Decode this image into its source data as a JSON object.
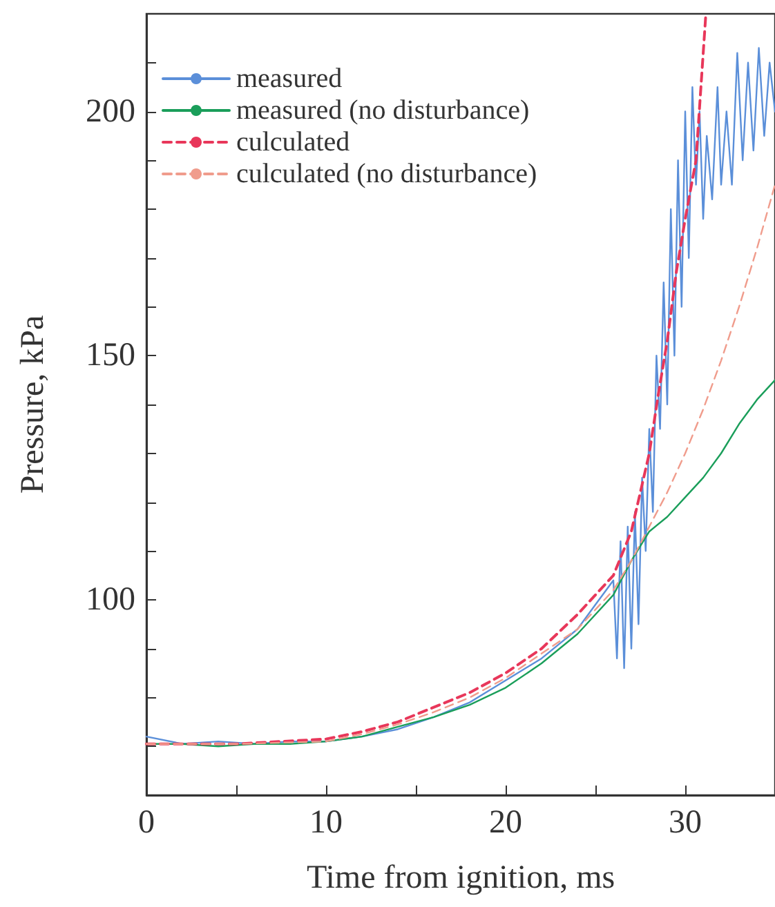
{
  "chart_data": {
    "type": "line",
    "xlabel": "Time from ignition, ms",
    "ylabel": "Pressure, kPa",
    "xlim": [
      0,
      35
    ],
    "ylim": [
      60,
      220
    ],
    "xticks": [
      0,
      {
        "value": 5,
        "label": null
      },
      10,
      {
        "value": 15,
        "label": null
      },
      20,
      {
        "value": 25,
        "label": null
      },
      30
    ],
    "yticks": [
      {
        "value": 70,
        "label": null
      },
      {
        "value": 80,
        "label": null
      },
      {
        "value": 90,
        "label": null
      },
      100,
      {
        "value": 110,
        "label": null
      },
      {
        "value": 120,
        "label": null
      },
      {
        "value": 130,
        "label": null
      },
      {
        "value": 140,
        "label": null
      },
      150,
      {
        "value": 160,
        "label": null
      },
      {
        "value": 170,
        "label": null
      },
      {
        "value": 180,
        "label": null
      },
      {
        "value": 190,
        "label": null
      },
      200,
      {
        "value": 210,
        "label": null
      }
    ],
    "grid": false,
    "legend": "top left",
    "marker": "none",
    "series": [
      {
        "name": "measured",
        "color": "#5b8fd9",
        "line_style": "solid",
        "x": [
          0,
          2,
          4,
          6,
          8,
          10,
          12,
          14,
          16,
          18,
          20,
          22,
          23,
          24,
          25,
          26,
          26.2,
          26.4,
          26.6,
          26.8,
          27,
          27.2,
          27.4,
          27.6,
          27.8,
          28,
          28.2,
          28.4,
          28.6,
          28.8,
          29,
          29.2,
          29.4,
          29.6,
          29.8,
          30,
          30.2,
          30.4,
          30.6,
          30.8,
          31,
          31.2,
          31.5,
          31.8,
          32,
          32.3,
          32.6,
          32.9,
          33.2,
          33.5,
          33.8,
          34.1,
          34.4,
          34.7,
          35
        ],
        "values": [
          72,
          70.5,
          71,
          70.5,
          71,
          71,
          72,
          73.5,
          76,
          79,
          83.5,
          88,
          91,
          94,
          99,
          104,
          88,
          112,
          86,
          115,
          90,
          118,
          95,
          125,
          110,
          135,
          118,
          150,
          135,
          165,
          140,
          180,
          150,
          190,
          160,
          200,
          170,
          205,
          185,
          200,
          178,
          195,
          182,
          205,
          185,
          200,
          185,
          212,
          190,
          210,
          192,
          213,
          195,
          210,
          200
        ]
      },
      {
        "name": "measured (no disturbance)",
        "color": "#1a9e5a",
        "line_style": "solid",
        "x": [
          0,
          2,
          4,
          6,
          8,
          10,
          12,
          14,
          16,
          18,
          20,
          22,
          24,
          25,
          26,
          27,
          28,
          29,
          30,
          31,
          32,
          33,
          34,
          35
        ],
        "values": [
          70.5,
          70.5,
          70,
          70.5,
          70.5,
          71,
          72,
          74,
          76,
          78.5,
          82,
          87,
          93,
          97,
          101,
          108,
          114,
          117,
          121,
          125,
          130,
          136,
          141,
          145
        ]
      },
      {
        "name": "culculated",
        "color": "#e8375a",
        "line_style": "dashed",
        "x": [
          0,
          5,
          10,
          12,
          14,
          16,
          18,
          20,
          22,
          24,
          25,
          26,
          27,
          28,
          28.5,
          29,
          29.5,
          30,
          30.6,
          31.15
        ],
        "values": [
          70.5,
          70.5,
          71.5,
          73,
          75,
          78,
          81,
          85,
          90,
          97,
          101,
          105,
          114,
          130,
          142,
          153,
          167,
          178,
          190,
          220
        ]
      },
      {
        "name": "culculated (no disturbance)",
        "color": "#f09c8c",
        "line_style": "dashed",
        "x": [
          0,
          5,
          10,
          12,
          14,
          16,
          18,
          20,
          22,
          24,
          25,
          26,
          27,
          28,
          29,
          30,
          31,
          32,
          33,
          34,
          35
        ],
        "values": [
          70.5,
          70.5,
          71,
          72.5,
          74.5,
          77,
          80,
          84,
          89,
          94,
          98,
          102,
          108,
          115,
          122,
          130,
          139,
          149,
          160,
          172,
          185
        ]
      }
    ]
  }
}
